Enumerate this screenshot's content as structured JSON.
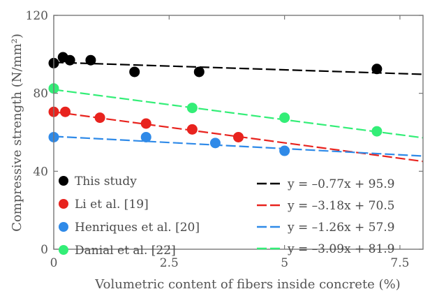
{
  "chart_data": {
    "type": "scatter",
    "xlabel": "Volumetric content of fibers inside concrete (%)",
    "ylabel": "Compressive strength (N/mm²)",
    "xlim": [
      0,
      8.0
    ],
    "ylim": [
      0,
      120
    ],
    "xticks": [
      "0",
      "2.5",
      "5",
      "7.5"
    ],
    "yticks": [
      "0",
      "40",
      "80",
      "120"
    ],
    "xtick_values": [
      0,
      2.5,
      5,
      7.5
    ],
    "ytick_values": [
      0,
      40,
      80,
      120
    ],
    "grid": false,
    "legend_points_position": "bottom-left",
    "legend_lines_position": "bottom-right",
    "series": [
      {
        "name": "This study",
        "color": "#000000",
        "points": [
          [
            0,
            95.5
          ],
          [
            0.2,
            98.5
          ],
          [
            0.35,
            97
          ],
          [
            0.8,
            97
          ],
          [
            1.75,
            91
          ],
          [
            3.15,
            91
          ],
          [
            7.0,
            92.5
          ]
        ],
        "fit": {
          "label": "y = –0.77x + 95.9",
          "slope": -0.77,
          "intercept": 95.9
        }
      },
      {
        "name": "Li et al. [19]",
        "color": "#e8231e",
        "points": [
          [
            0,
            70.5
          ],
          [
            0.25,
            70.5
          ],
          [
            1.0,
            67.5
          ],
          [
            2.0,
            64.5
          ],
          [
            3.0,
            61.5
          ],
          [
            4.0,
            57.5
          ]
        ],
        "fit": {
          "label": "y = –3.18x + 70.5",
          "slope": -3.18,
          "intercept": 70.5
        }
      },
      {
        "name": "Henriques et al. [20]",
        "color": "#2f8ae8",
        "points": [
          [
            0,
            57.5
          ],
          [
            2.0,
            57.5
          ],
          [
            3.5,
            54.5
          ],
          [
            5.0,
            50.5
          ]
        ],
        "fit": {
          "label": "y = –1.26x + 57.9",
          "slope": -1.26,
          "intercept": 57.9
        }
      },
      {
        "name": "Danial et al. [22]",
        "color": "#33ee77",
        "points": [
          [
            0,
            82.5
          ],
          [
            3.0,
            72.5
          ],
          [
            5.0,
            67.5
          ],
          [
            7.0,
            60.5
          ]
        ],
        "fit": {
          "label": "y = –3.09x + 81.9",
          "slope": -3.09,
          "intercept": 81.9
        }
      }
    ]
  }
}
